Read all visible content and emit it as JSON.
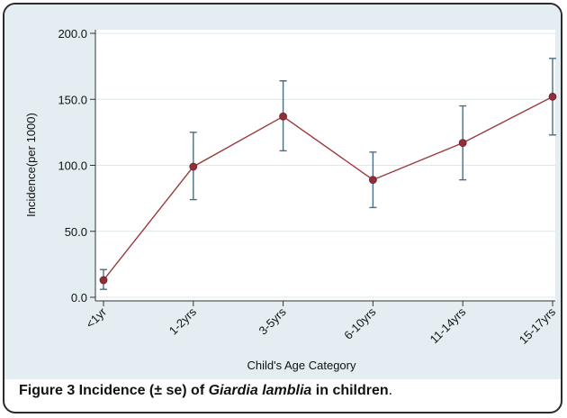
{
  "caption": {
    "label": "Figure 3",
    "text_pre": " Incidence (± se) of ",
    "species": "Giardia lamblia",
    "text_post": " in children",
    "end": "."
  },
  "chart_data": {
    "type": "line",
    "xlabel": "Child's Age Category",
    "ylabel": "Incidence(per 1000)",
    "ylim": [
      0,
      200
    ],
    "yticks": [
      "0.0",
      "50.0",
      "100.0",
      "150.0",
      "200.0"
    ],
    "ytick_values": [
      0,
      50,
      100,
      150,
      200
    ],
    "categories": [
      "<1yr",
      "1-2yrs",
      "3-5yrs",
      "6-10yrs",
      "11-14yrs",
      "15-17yrs"
    ],
    "series": [
      {
        "values": [
          13,
          99,
          137,
          89,
          117,
          152
        ],
        "error_low": [
          6,
          74,
          111,
          68,
          89,
          123
        ],
        "error_high": [
          21,
          125,
          164,
          110,
          145,
          181
        ]
      }
    ],
    "grid": "horizontal",
    "colors": {
      "background": "#e4eef2",
      "plot_area": "#ffffff",
      "line": "#9b3a3f",
      "marker": "#8f2f3a",
      "error_bar": "#4a6f82",
      "grid": "#dfe8ec"
    }
  }
}
